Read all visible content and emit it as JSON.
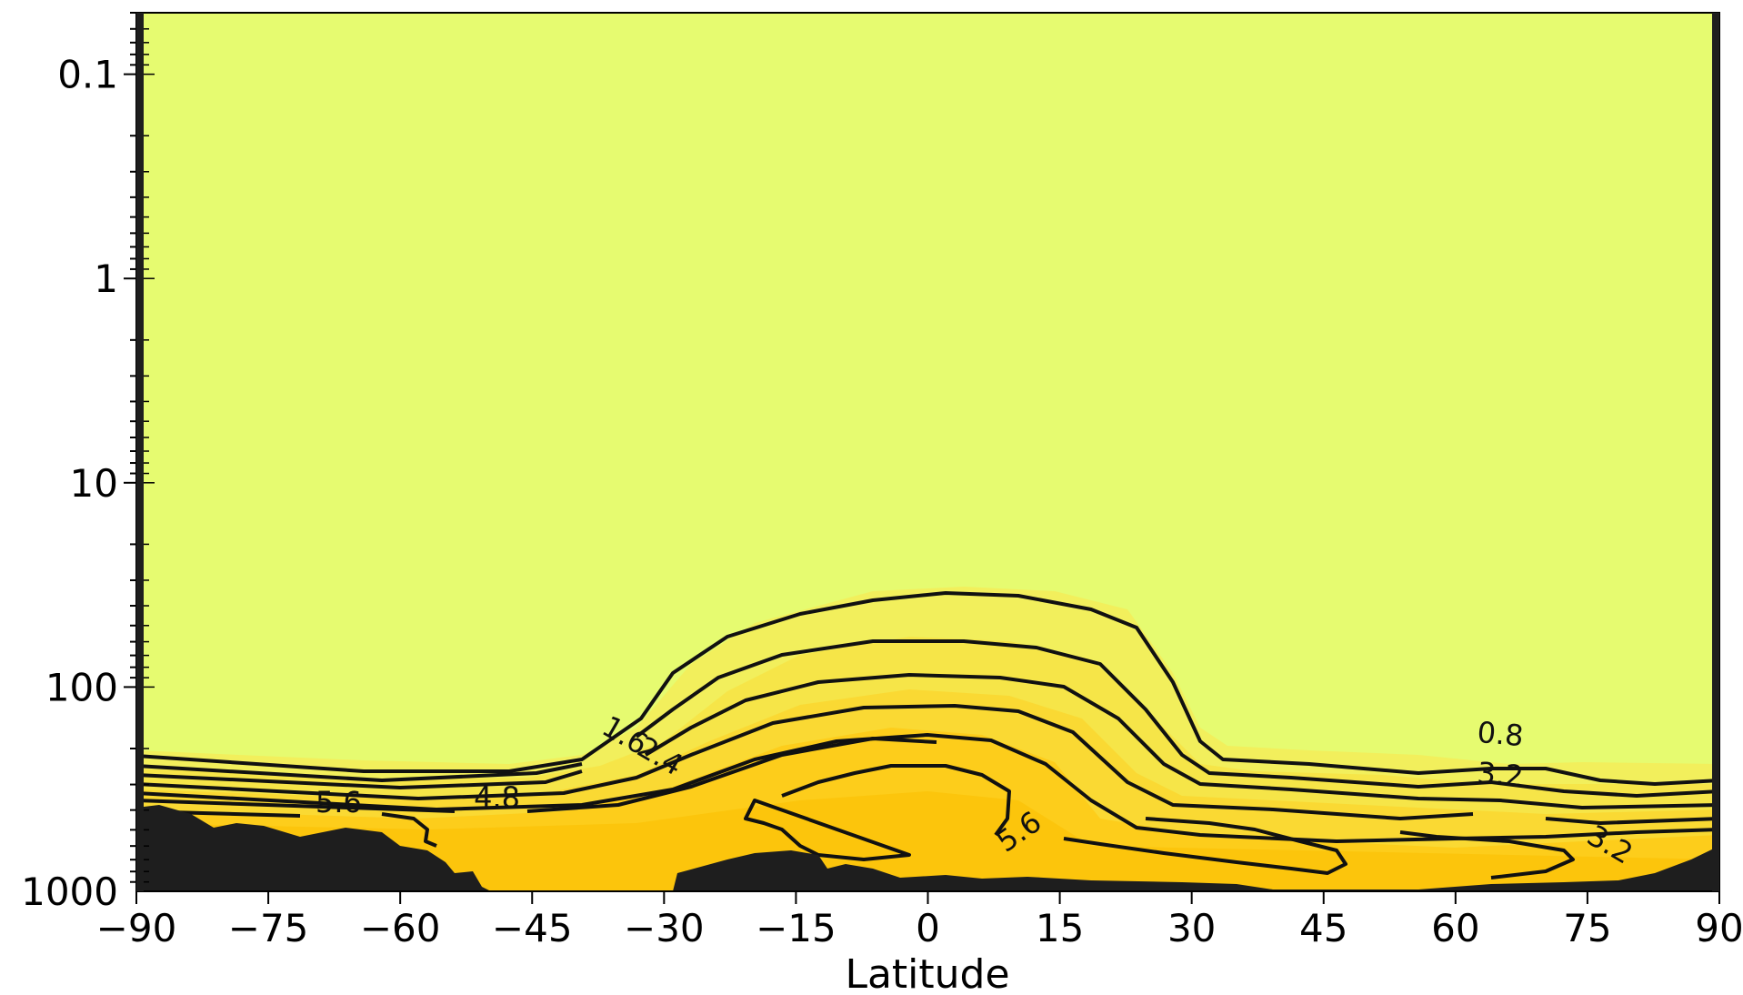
{
  "chart_data": {
    "type": "contour",
    "title": "",
    "xlabel": "Latitude",
    "ylabel": "",
    "x_range": [
      -90,
      90
    ],
    "x_ticks": [
      -90,
      -75,
      -60,
      -45,
      -30,
      -15,
      0,
      15,
      30,
      45,
      60,
      75,
      90
    ],
    "x_tick_labels": [
      "−90",
      "−75",
      "−60",
      "−45",
      "−30",
      "−15",
      "0",
      "15",
      "30",
      "45",
      "60",
      "75",
      "90"
    ],
    "y_scale": "log",
    "y_inverted": true,
    "y_range": [
      1000,
      0.05
    ],
    "y_ticks": [
      0.1,
      1,
      10,
      100,
      1000
    ],
    "y_tick_labels": [
      "0.1",
      "1",
      "10",
      "100",
      "1000"
    ],
    "contour_levels": [
      0.8,
      1.6,
      2.4,
      3.2,
      4.0,
      4.8,
      5.6
    ],
    "contour_labels": [
      {
        "text": "1.6",
        "lat": -35,
        "p": 190,
        "angle": 30
      },
      {
        "text": "2.4",
        "lat": -31,
        "p": 240,
        "angle": 30
      },
      {
        "text": "5.6",
        "lat": -67,
        "p": 410,
        "angle": 0
      },
      {
        "text": "4.8",
        "lat": -49,
        "p": 390,
        "angle": 0
      },
      {
        "text": "5.6",
        "lat": 11,
        "p": 560,
        "angle": -35
      },
      {
        "text": "0.8",
        "lat": 65,
        "p": 190,
        "angle": 5
      },
      {
        "text": "3.2",
        "lat": 65,
        "p": 300,
        "angle": 5
      },
      {
        "text": "3.2",
        "lat": 77,
        "p": 650,
        "angle": 30
      }
    ],
    "colors": {
      "background_fill": "#e6fb70",
      "fill_scale": [
        "#e6fb70",
        "#f3ec58",
        "#f9df3a",
        "#fdd324",
        "#fcc712"
      ],
      "contour_line": "#111111",
      "topography": "#1e1e1e"
    },
    "grid": false
  }
}
